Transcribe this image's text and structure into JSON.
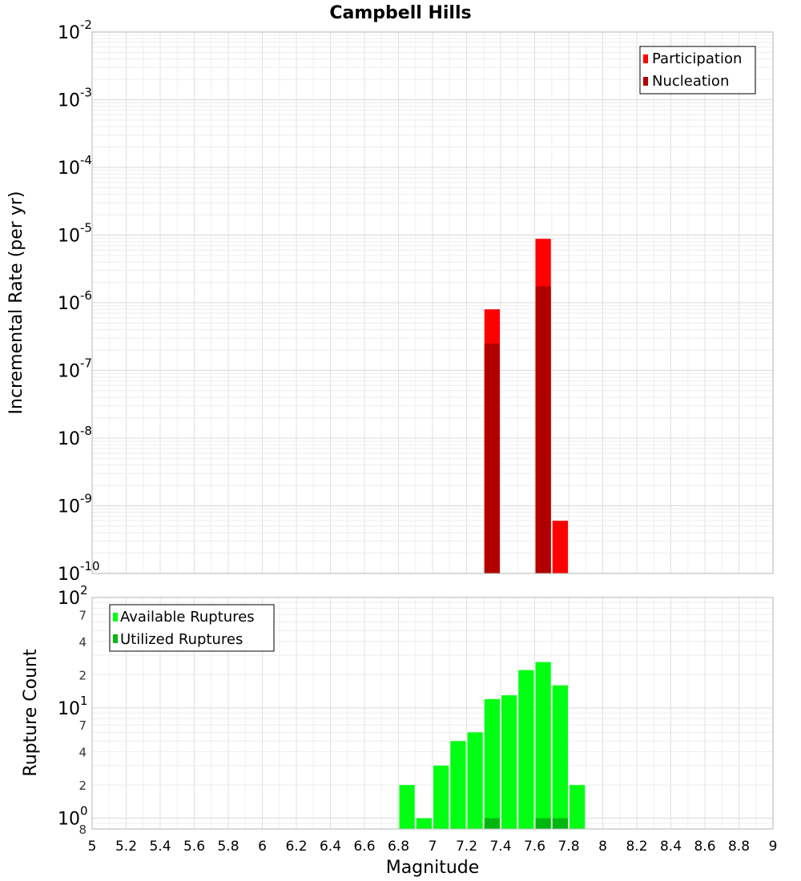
{
  "chart_data": [
    {
      "type": "bar",
      "title": "Campbell Hills",
      "xlabel": "",
      "ylabel": "Incremental Rate (per yr)",
      "xlim": [
        5,
        9
      ],
      "ylim": [
        1e-10,
        0.01
      ],
      "yscale": "log",
      "bar_width": 0.1,
      "grid": true,
      "legend_position": "top-right",
      "y_tick_labels": [
        {
          "exp": -10,
          "base": "10",
          "sup": "-10"
        },
        {
          "exp": -9,
          "base": "10",
          "sup": "-9"
        },
        {
          "exp": -8,
          "base": "10",
          "sup": "-8"
        },
        {
          "exp": -7,
          "base": "10",
          "sup": "-7"
        },
        {
          "exp": -6,
          "base": "10",
          "sup": "-6"
        },
        {
          "exp": -5,
          "base": "10",
          "sup": "-5"
        },
        {
          "exp": -4,
          "base": "10",
          "sup": "-4"
        },
        {
          "exp": -3,
          "base": "10",
          "sup": "-3"
        },
        {
          "exp": -2,
          "base": "10",
          "sup": "-2"
        }
      ],
      "series": [
        {
          "name": "Participation",
          "color": "#ff0000",
          "x": [
            7.35,
            7.65,
            7.75
          ],
          "values": [
            8e-07,
            8.8e-06,
            6e-10
          ]
        },
        {
          "name": "Nucleation",
          "color": "#b20000",
          "x": [
            7.35,
            7.65
          ],
          "values": [
            2.5e-07,
            1.75e-06
          ]
        }
      ]
    },
    {
      "type": "bar",
      "title": "",
      "xlabel": "Magnitude",
      "ylabel": "Rupture Count",
      "xlim": [
        5,
        9
      ],
      "ylim": [
        0.8,
        100
      ],
      "yscale": "log",
      "bar_width": 0.1,
      "grid": true,
      "legend_position": "top-left",
      "x_tick_labels": [
        "5",
        "5.2",
        "5.4",
        "5.6",
        "5.8",
        "6",
        "6.2",
        "6.4",
        "6.6",
        "6.8",
        "7",
        "7.2",
        "7.4",
        "7.6",
        "7.8",
        "8",
        "8.2",
        "8.4",
        "8.6",
        "8.8",
        "9"
      ],
      "y_major_tick_labels": [
        {
          "value": 1,
          "base": "10",
          "sup": "0"
        },
        {
          "value": 10,
          "base": "10",
          "sup": "1"
        },
        {
          "value": 100,
          "base": "10",
          "sup": "2"
        }
      ],
      "y_minor_tick_labels": [
        {
          "value": 0.8,
          "label": "8"
        },
        {
          "value": 2,
          "label": "2"
        },
        {
          "value": 4,
          "label": "4"
        },
        {
          "value": 7,
          "label": "7"
        },
        {
          "value": 20,
          "label": "2"
        },
        {
          "value": 40,
          "label": "4"
        },
        {
          "value": 70,
          "label": "7"
        }
      ],
      "series": [
        {
          "name": "Available Ruptures",
          "color": "#00ff12",
          "x": [
            6.85,
            6.95,
            7.05,
            7.15,
            7.25,
            7.35,
            7.45,
            7.55,
            7.65,
            7.75,
            7.85
          ],
          "values": [
            2,
            1,
            3,
            5,
            6,
            12,
            13,
            22,
            26,
            16,
            2
          ]
        },
        {
          "name": "Utilized Ruptures",
          "color": "#00b80d",
          "x": [
            7.35,
            7.65,
            7.75
          ],
          "values": [
            1,
            1,
            1
          ]
        }
      ]
    }
  ]
}
